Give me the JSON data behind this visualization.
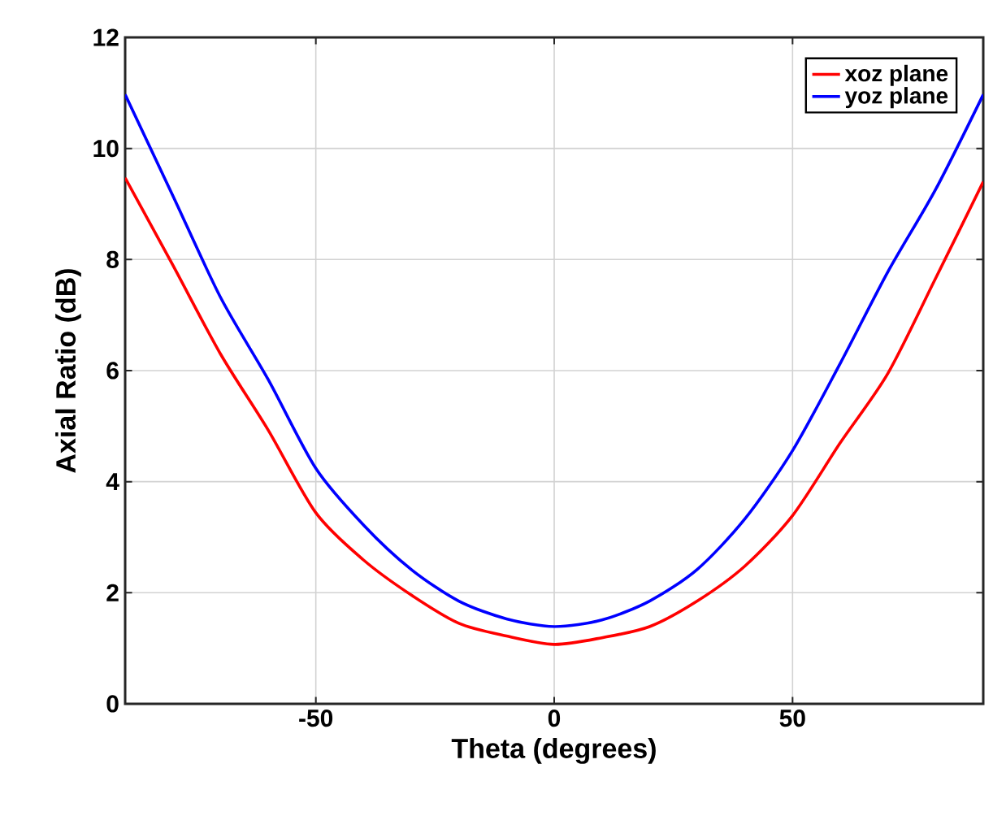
{
  "chart_data": {
    "type": "line",
    "xlabel": "Theta (degrees)",
    "ylabel": "Axial Ratio (dB)",
    "x": [
      -90,
      -80,
      -70,
      -60,
      -50,
      -40,
      -30,
      -20,
      -10,
      0,
      10,
      20,
      30,
      40,
      50,
      60,
      70,
      80,
      90
    ],
    "series": [
      {
        "name": "xoz plane",
        "color": "#ff0000",
        "values": [
          9.47,
          7.9,
          6.3,
          4.93,
          3.44,
          2.59,
          1.96,
          1.45,
          1.22,
          1.07,
          1.19,
          1.39,
          1.85,
          2.48,
          3.39,
          4.7,
          5.95,
          7.66,
          9.4
        ]
      },
      {
        "name": "yoz plane",
        "color": "#0000ff",
        "values": [
          10.97,
          9.15,
          7.32,
          5.84,
          4.24,
          3.22,
          2.42,
          1.85,
          1.53,
          1.39,
          1.51,
          1.85,
          2.42,
          3.33,
          4.56,
          6.13,
          7.78,
          9.26,
          10.97
        ]
      }
    ],
    "xlim": [
      -90,
      90
    ],
    "ylim": [
      0,
      12
    ],
    "xticks": [
      -50,
      0,
      50
    ],
    "yticks": [
      0,
      2,
      4,
      6,
      8,
      10,
      12
    ],
    "grid": true,
    "legend": "top right",
    "line_style": "solid",
    "marker": "none"
  }
}
